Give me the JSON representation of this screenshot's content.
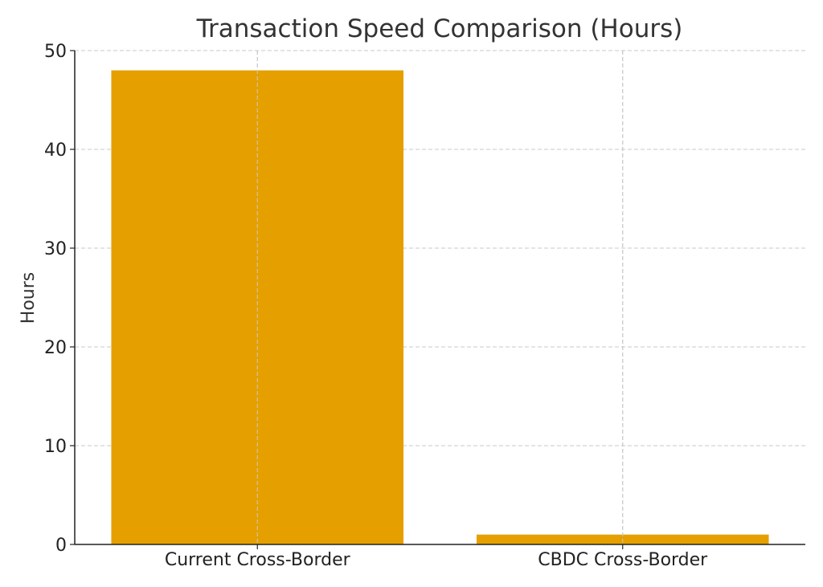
{
  "chart_data": {
    "type": "bar",
    "title": "Transaction Speed Comparison (Hours)",
    "xlabel": "",
    "ylabel": "Hours",
    "categories": [
      "Current Cross-Border",
      "CBDC Cross-Border"
    ],
    "values": [
      48,
      1
    ],
    "ylim": [
      0,
      50
    ],
    "yticks": [
      "0",
      "10",
      "20",
      "30",
      "40",
      "50"
    ],
    "grid": true,
    "bar_color": "#E5A000"
  }
}
